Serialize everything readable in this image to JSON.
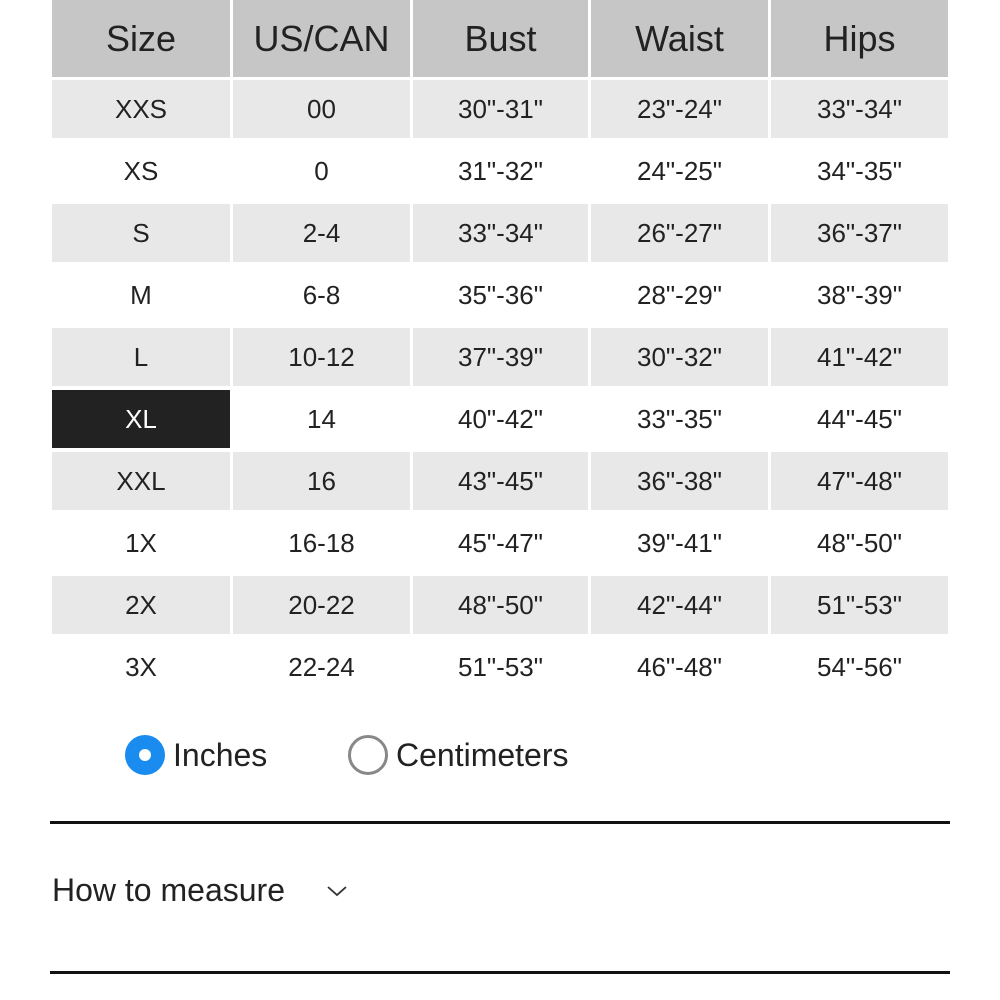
{
  "table": {
    "headers": [
      "Size",
      "US/CAN",
      "Bust",
      "Waist",
      "Hips"
    ],
    "highlighted_size": "XL",
    "rows": [
      [
        "XXS",
        "00",
        "30\"-31\"",
        "23\"-24\"",
        "33\"-34\""
      ],
      [
        "XS",
        "0",
        "31\"-32\"",
        "24\"-25\"",
        "34\"-35\""
      ],
      [
        "S",
        "2-4",
        "33\"-34\"",
        "26\"-27\"",
        "36\"-37\""
      ],
      [
        "M",
        "6-8",
        "35\"-36\"",
        "28\"-29\"",
        "38\"-39\""
      ],
      [
        "L",
        "10-12",
        "37\"-39\"",
        "30\"-32\"",
        "41\"-42\""
      ],
      [
        "XL",
        "14",
        "40\"-42\"",
        "33\"-35\"",
        "44\"-45\""
      ],
      [
        "XXL",
        "16",
        "43\"-45\"",
        "36\"-38\"",
        "47\"-48\""
      ],
      [
        "1X",
        "16-18",
        "45\"-47\"",
        "39\"-41\"",
        "48\"-50\""
      ],
      [
        "2X",
        "20-22",
        "48\"-50\"",
        "42\"-44\"",
        "51\"-53\""
      ],
      [
        "3X",
        "22-24",
        "51\"-53\"",
        "46\"-48\"",
        "54\"-56\""
      ]
    ]
  },
  "units": {
    "options": [
      {
        "label": "Inches",
        "selected": true
      },
      {
        "label": "Centimeters",
        "selected": false
      }
    ],
    "accent_color": "#1a8cf0"
  },
  "accordion": {
    "label": "How to measure",
    "icon": "chevron-down-icon"
  }
}
